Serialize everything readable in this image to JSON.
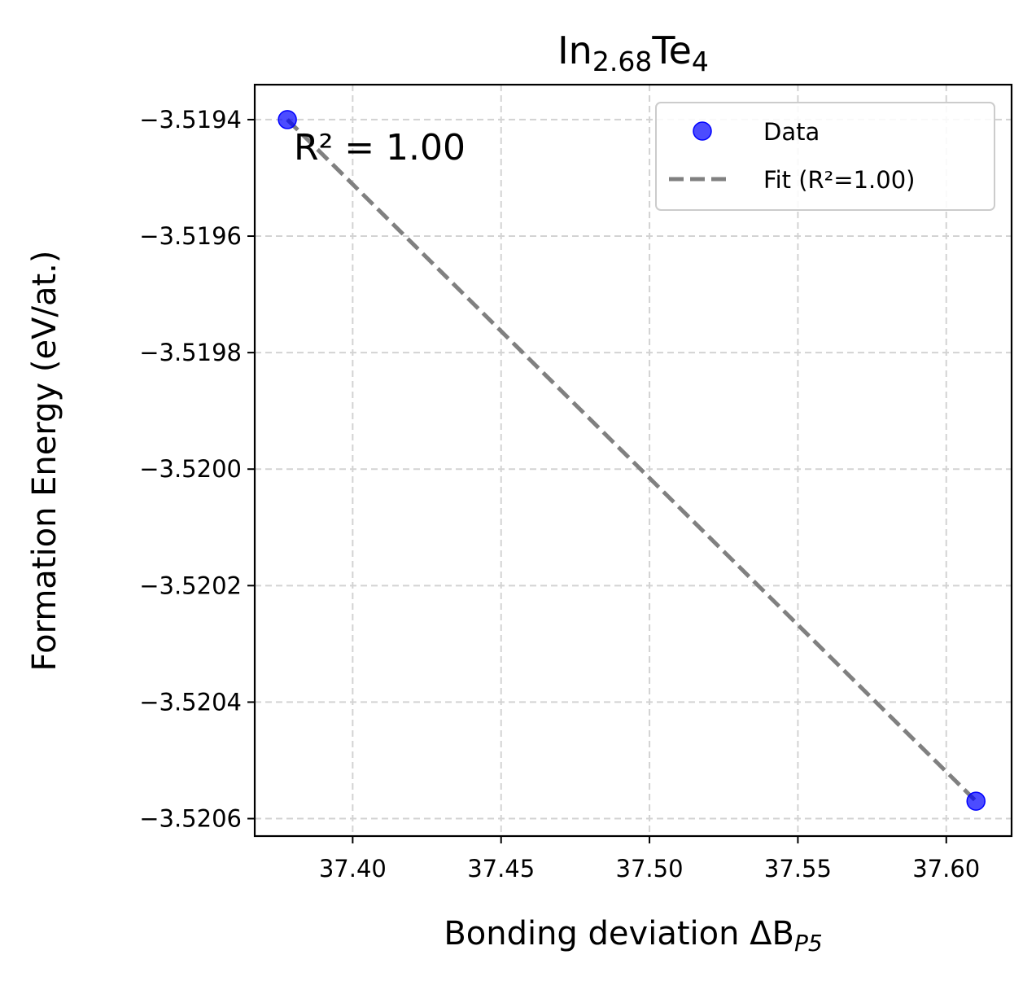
{
  "chart_data": {
    "type": "scatter",
    "title": {
      "base": "In",
      "sub1": "2.68",
      "mid": "Te",
      "sub2": "4"
    },
    "xlabel": {
      "base": "Bonding deviation ΔB",
      "sub": "P5"
    },
    "ylabel": "Formation Energy (eV/at.)",
    "xlim": [
      37.367,
      37.622
    ],
    "ylim": [
      -3.52063,
      -3.51934
    ],
    "xticks": [
      37.4,
      37.45,
      37.5,
      37.55,
      37.6
    ],
    "xtick_labels": [
      "37.40",
      "37.45",
      "37.50",
      "37.55",
      "37.60"
    ],
    "yticks": [
      -3.5194,
      -3.5196,
      -3.5198,
      -3.52,
      -3.5202,
      -3.5204,
      -3.5206
    ],
    "ytick_labels": [
      "−3.5194",
      "−3.5196",
      "−3.5198",
      "−3.5200",
      "−3.5202",
      "−3.5204",
      "−3.5206"
    ],
    "grid": true,
    "series": [
      {
        "name": "Data",
        "kind": "scatter",
        "color": "#0000ff",
        "points": [
          {
            "x": 37.378,
            "y": -3.5194
          },
          {
            "x": 37.61,
            "y": -3.52057
          }
        ]
      },
      {
        "name": "Fit (R²=1.00)",
        "kind": "line",
        "style": "dashed",
        "color": "#808080",
        "points": [
          {
            "x": 37.378,
            "y": -3.5194
          },
          {
            "x": 37.61,
            "y": -3.52057
          }
        ]
      }
    ],
    "annotation": "R² = 1.00",
    "legend_position": "top-right"
  }
}
